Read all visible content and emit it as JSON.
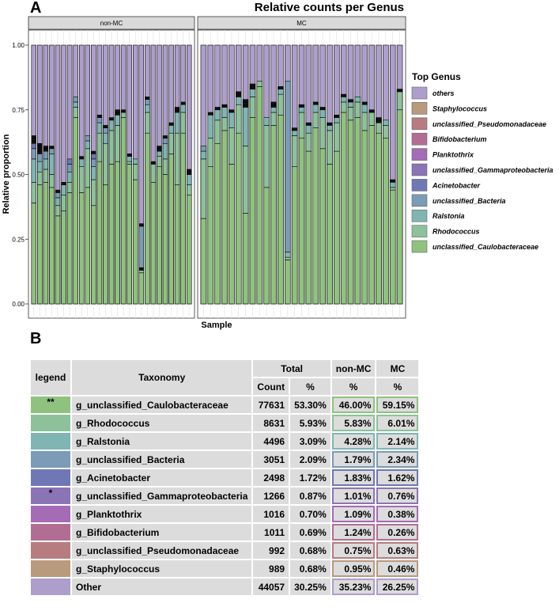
{
  "panel_a_label": "A",
  "panel_b_label": "B",
  "colors": {
    "others": "#ad9ecc",
    "Staphylococcus": "#b89a7c",
    "unclassified_Pseudomonadaceae": "#b77c7f",
    "Bifidobacterium": "#b26e92",
    "Planktothrix": "#a46bb6",
    "unclassified_Gammaproteobacteria": "#8b74b6",
    "Acinetobacter": "#6f77b5",
    "unclassified_Bacteria": "#7b9bb6",
    "Ralstonia": "#7fb5b3",
    "Rhodococcus": "#8dc19a",
    "unclassified_Caulobacteraceae": "#8fc27e",
    "outline": "#000000",
    "strip": "#d9d9d9"
  },
  "chart_data": {
    "type": "bar",
    "stacked": true,
    "title": "Relative counts per Genus",
    "xlabel": "Sample",
    "ylabel": "Relative proportion",
    "ylim": [
      0,
      1
    ],
    "yticks": [
      "0.00",
      "0.25",
      "0.50",
      "0.75",
      "1.00"
    ],
    "legend_title": "Top Genus",
    "legend": [
      "others",
      "Staphylococcus",
      "unclassified_Pseudomonadaceae",
      "Bifidobacterium",
      "Planktothrix",
      "unclassified_Gammaproteobacteria",
      "Acinetobacter",
      "unclassified_Bacteria",
      "Ralstonia",
      "Rhodococcus",
      "unclassified_Caulobacteraceae"
    ],
    "panels": [
      {
        "label": "non-MC",
        "tops": [
          [
            0.39,
            0.47,
            0.56,
            0.6,
            0.62,
            0.63,
            0.64,
            0.65
          ],
          [
            0.46,
            0.51,
            0.55,
            0.58,
            0.59,
            0.6,
            0.61,
            0.62
          ],
          [
            0.47,
            0.52,
            0.56,
            0.59,
            0.6,
            0.61
          ],
          [
            0.45,
            0.5,
            0.58,
            0.6,
            0.61
          ],
          [
            0.34,
            0.38,
            0.41,
            0.43,
            0.44
          ],
          [
            0.36,
            0.42,
            0.46,
            0.47
          ],
          [
            0.43,
            0.47,
            0.51,
            0.54,
            0.56
          ],
          [
            0.72,
            0.76,
            0.78,
            0.8
          ],
          [
            0.43,
            0.53,
            0.56,
            0.57
          ],
          [
            0.45,
            0.6,
            0.63,
            0.65
          ],
          [
            0.38,
            0.48,
            0.53,
            0.56,
            0.58,
            0.59
          ],
          [
            0.55,
            0.66,
            0.7,
            0.72,
            0.73
          ],
          [
            0.46,
            0.62,
            0.66,
            0.68,
            0.69
          ],
          [
            0.54,
            0.67,
            0.71,
            0.72
          ],
          [
            0.55,
            0.69,
            0.73,
            0.74,
            0.75
          ],
          [
            0.72,
            0.74,
            0.75
          ],
          [
            0.54,
            0.55,
            0.57,
            0.58
          ],
          [
            0.48,
            0.54,
            0.56
          ],
          [
            0.12,
            0.13,
            0.14,
            0.3,
            0.31
          ],
          [
            0.66,
            0.74,
            0.77,
            0.79,
            0.8
          ],
          [
            0.47,
            0.54,
            0.55
          ],
          [
            0.53,
            0.57,
            0.59,
            0.6,
            0.61
          ],
          [
            0.5,
            0.56,
            0.62,
            0.64,
            0.65
          ],
          [
            0.58,
            0.66,
            0.69,
            0.7
          ],
          [
            0.46,
            0.66,
            0.74,
            0.75,
            0.76
          ],
          [
            0.66,
            0.74,
            0.77,
            0.78
          ],
          [
            0.42,
            0.46,
            0.5,
            0.51,
            0.52
          ]
        ]
      },
      {
        "label": "MC",
        "tops": [
          [
            0.33,
            0.56,
            0.59,
            0.61
          ],
          [
            0.53,
            0.64,
            0.73,
            0.74
          ],
          [
            0.62,
            0.71,
            0.75,
            0.76
          ],
          [
            0.67,
            0.72,
            0.76,
            0.77
          ],
          [
            0.54,
            0.68,
            0.74,
            0.75
          ],
          [
            0.66,
            0.77,
            0.8,
            0.81,
            0.82
          ],
          [
            0.35,
            0.61,
            0.76,
            0.77,
            0.78,
            0.79
          ],
          [
            0.72,
            0.8,
            0.83,
            0.84,
            0.85
          ],
          [
            0.84,
            0.86
          ],
          [
            0.45,
            0.69,
            0.72
          ],
          [
            0.69,
            0.74,
            0.76,
            0.77,
            0.78
          ],
          [
            0.73,
            0.81,
            0.83,
            0.84
          ],
          [
            0.17,
            0.18,
            0.2,
            0.86
          ],
          [
            0.53,
            0.65,
            0.67,
            0.68
          ],
          [
            0.64,
            0.74,
            0.76,
            0.77
          ],
          [
            0.59,
            0.66,
            0.69,
            0.7
          ],
          [
            0.68,
            0.74,
            0.77,
            0.78
          ],
          [
            0.6,
            0.72,
            0.75,
            0.76
          ],
          [
            0.54,
            0.67,
            0.69,
            0.7
          ],
          [
            0.59,
            0.7,
            0.72,
            0.73
          ],
          [
            0.74,
            0.78,
            0.8,
            0.81
          ],
          [
            0.71,
            0.76,
            0.78,
            0.79
          ],
          [
            0.72,
            0.78,
            0.8
          ],
          [
            0.67,
            0.74,
            0.77,
            0.78
          ],
          [
            0.69,
            0.74,
            0.75
          ],
          [
            0.66,
            0.7,
            0.71,
            0.72
          ],
          [
            0.64,
            0.69,
            0.71
          ],
          [
            0.44,
            0.45,
            0.47,
            0.48
          ],
          [
            0.75,
            0.82,
            0.83
          ]
        ]
      }
    ]
  },
  "table": {
    "headers": {
      "legend": "legend",
      "taxonomy": "Taxonomy",
      "total": "Total",
      "non_mc": "non-MC",
      "mc": "MC",
      "count": "Count",
      "pct": "%",
      "non_mc_pct": "%",
      "mc_pct": "%"
    },
    "rows": [
      {
        "mark": "**",
        "taxonomy": "g_unclassified_Caulobacteraceae",
        "count": "77631",
        "pct": "53.30%",
        "non_mc": "46.00%",
        "mc": "59.15%",
        "color": "#8fc27e"
      },
      {
        "mark": "",
        "taxonomy": "g_Rhodococcus",
        "count": "8631",
        "pct": "5.93%",
        "non_mc": "5.83%",
        "mc": "6.01%",
        "color": "#8dc19a"
      },
      {
        "mark": "",
        "taxonomy": "g_Ralstonia",
        "count": "4496",
        "pct": "3.09%",
        "non_mc": "4.28%",
        "mc": "2.14%",
        "color": "#7fb5b3"
      },
      {
        "mark": "",
        "taxonomy": "g_unclassified_Bacteria",
        "count": "3051",
        "pct": "2.09%",
        "non_mc": "1.79%",
        "mc": "2.34%",
        "color": "#7b9bb6"
      },
      {
        "mark": "",
        "taxonomy": "g_Acinetobacter",
        "count": "2498",
        "pct": "1.72%",
        "non_mc": "1.83%",
        "mc": "1.62%",
        "color": "#6f77b5"
      },
      {
        "mark": "*",
        "taxonomy": "g_unclassified_Gammaproteobacteria",
        "count": "1266",
        "pct": "0.87%",
        "non_mc": "1.01%",
        "mc": "0.76%",
        "color": "#8b74b6"
      },
      {
        "mark": "",
        "taxonomy": "g_Planktothrix",
        "count": "1016",
        "pct": "0.70%",
        "non_mc": "1.09%",
        "mc": "0.38%",
        "color": "#a46bb6"
      },
      {
        "mark": "",
        "taxonomy": "g_Bifidobacterium",
        "count": "1011",
        "pct": "0.69%",
        "non_mc": "1.24%",
        "mc": "0.26%",
        "color": "#b26e92"
      },
      {
        "mark": "",
        "taxonomy": "g_unclassified_Pseudomonadaceae",
        "count": "992",
        "pct": "0.68%",
        "non_mc": "0.75%",
        "mc": "0.63%",
        "color": "#b77c7f"
      },
      {
        "mark": "",
        "taxonomy": "g_Staphylococcus",
        "count": "989",
        "pct": "0.68%",
        "non_mc": "0.95%",
        "mc": "0.46%",
        "color": "#b89a7c"
      },
      {
        "mark": "",
        "taxonomy": "Other",
        "count": "44057",
        "pct": "30.25%",
        "non_mc": "35.23%",
        "mc": "26.25%",
        "color": "#ad9ecc"
      }
    ]
  }
}
